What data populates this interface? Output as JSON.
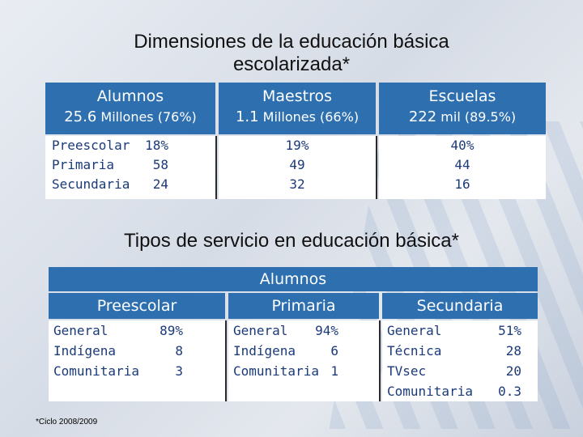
{
  "title1": "Dimensiones de la educación básica escolarizada*",
  "table1": {
    "columns": [
      {
        "label": "Alumnos",
        "value_num": "25.6",
        "value_rest": "Millones (76%)"
      },
      {
        "label": "Maestros",
        "value_num": "1.1",
        "value_rest": "Millones (66%)"
      },
      {
        "label": "Escuelas",
        "value_num": "222",
        "value_rest": "mil (89.5%)"
      }
    ],
    "levels": [
      "Preescolar",
      "Primaria",
      "Secundaria"
    ],
    "alumnos": [
      "18%",
      "58",
      "24"
    ],
    "maestros": [
      "19%",
      "49",
      "32"
    ],
    "escuelas": [
      "40%",
      "44",
      "16"
    ]
  },
  "title2": "Tipos de servicio en educación básica*",
  "table2": {
    "top_label": "Alumnos",
    "preescolar": {
      "label": "Preescolar",
      "rows": [
        {
          "name": "General",
          "value": "89%"
        },
        {
          "name": "Indígena",
          "value": "8"
        },
        {
          "name": "Comunitaria",
          "value": "3"
        }
      ]
    },
    "primaria": {
      "label": "Primaria",
      "rows": [
        {
          "name": "General",
          "value": "94%"
        },
        {
          "name": "Indígena",
          "value": "6"
        },
        {
          "name": "Comunitaria",
          "value": "1"
        }
      ]
    },
    "secundaria": {
      "label": "Secundaria",
      "rows": [
        {
          "name": "General",
          "value": "51%"
        },
        {
          "name": "Técnica",
          "value": "28"
        },
        {
          "name": "TVsec",
          "value": "20"
        },
        {
          "name": "Comunitaria",
          "value": "0.3"
        }
      ]
    }
  },
  "footnote": "*Ciclo 2008/2009"
}
